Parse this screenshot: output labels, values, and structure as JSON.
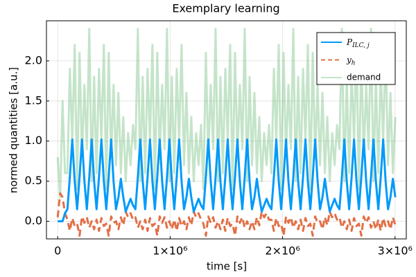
{
  "chart_data": {
    "type": "line",
    "title": "Exemplary learning",
    "xlabel": "time [s]",
    "ylabel": "normed quantities [a.u.]",
    "xlim": [
      -100000,
      3100000
    ],
    "ylim": [
      -0.22,
      2.5
    ],
    "xticks": [
      {
        "value": 0,
        "label": "0"
      },
      {
        "value": 1000000,
        "label": "1×10⁶"
      },
      {
        "value": 2000000,
        "label": "2×10⁶"
      },
      {
        "value": 3000000,
        "label": "3×10⁶"
      }
    ],
    "yticks": [
      {
        "value": 0,
        "label": "0.0"
      },
      {
        "value": 0.5,
        "label": "0.5"
      },
      {
        "value": 1,
        "label": "1.0"
      },
      {
        "value": 1.5,
        "label": "1.5"
      },
      {
        "value": 2,
        "label": "2.0"
      }
    ],
    "grid": true,
    "legend": "top-right",
    "x": [
      0,
      21600,
      43200,
      64800,
      86400,
      108000,
      129600,
      151200,
      172800,
      194400,
      216000,
      237600,
      259200,
      280800,
      302400,
      324000,
      345600,
      367200,
      388800,
      410400,
      432000,
      453600,
      475200,
      496800,
      518400,
      540000,
      561600,
      583200,
      604800,
      626400,
      648000,
      669600,
      691200,
      712800,
      734400,
      756000,
      777600,
      799200,
      820800,
      842400,
      864000,
      885600,
      907200,
      928800,
      950400,
      972000,
      993600,
      1015200,
      1036800,
      1058400,
      1080000,
      1101600,
      1123200,
      1144800,
      1166400,
      1188000,
      1209600,
      1231200,
      1252800,
      1274400,
      1296000,
      1317600,
      1339200,
      1360800,
      1382400,
      1404000,
      1425600,
      1447200,
      1468800,
      1490400,
      1512000,
      1533600,
      1555200,
      1576800,
      1598400,
      1620000,
      1641600,
      1663200,
      1684800,
      1706400,
      1728000,
      1749600,
      1771200,
      1792800,
      1814400,
      1836000,
      1857600,
      1879200,
      1900800,
      1922400,
      1944000,
      1965600,
      1987200,
      2008800,
      2030400,
      2052000,
      2073600,
      2095200,
      2116800,
      2138400,
      2160000,
      2181600,
      2203200,
      2224800,
      2246400,
      2268000,
      2289600,
      2311200,
      2332800,
      2354400,
      2376000,
      2397600,
      2419200,
      2440800,
      2462400,
      2484000,
      2505600,
      2527200,
      2548800,
      2570400,
      2592000,
      2613600,
      2635200,
      2656800,
      2678400,
      2700000,
      2721600,
      2743200,
      2764800,
      2786400,
      2808000,
      2829600,
      2851200,
      2872800,
      2894400,
      2916000,
      2937600,
      2959200,
      2980800,
      3002400
    ],
    "series": [
      {
        "name": "P_ILC, j",
        "color": "#009afa",
        "dash": false,
        "opacity": 1,
        "values": [
          0,
          0,
          0,
          0.1,
          0.15,
          0.55,
          1.02,
          0.5,
          0.15,
          0.55,
          1.02,
          0.5,
          0.15,
          0.55,
          1.02,
          0.5,
          0.15,
          0.55,
          1.02,
          0.5,
          0.15,
          0.55,
          1.02,
          0.5,
          0.15,
          0.3,
          0.53,
          0.3,
          0.12,
          0.2,
          0.28,
          0.2,
          0.15,
          0.55,
          1.02,
          0.5,
          0.15,
          0.55,
          1.02,
          0.5,
          0.15,
          0.55,
          1.02,
          0.5,
          0.15,
          0.55,
          1.02,
          0.5,
          0.15,
          0.55,
          1.02,
          0.5,
          0.15,
          0.3,
          0.53,
          0.3,
          0.12,
          0.2,
          0.28,
          0.2,
          0.15,
          0.55,
          1.02,
          0.5,
          0.15,
          0.55,
          1.02,
          0.5,
          0.15,
          0.55,
          1.02,
          0.5,
          0.15,
          0.55,
          1.02,
          0.5,
          0.15,
          0.55,
          1.02,
          0.5,
          0.15,
          0.3,
          0.53,
          0.3,
          0.12,
          0.2,
          0.28,
          0.2,
          0.15,
          0.55,
          1.02,
          0.5,
          0.15,
          0.55,
          1.02,
          0.5,
          0.15,
          0.55,
          1.02,
          0.5,
          0.15,
          0.55,
          1.02,
          0.5,
          0.15,
          0.55,
          1.02,
          0.5,
          0.15,
          0.3,
          0.53,
          0.3,
          0.12,
          0.2,
          0.28,
          0.2,
          0.15,
          0.55,
          1.02,
          0.5,
          0.15,
          0.55,
          1.02,
          0.5,
          0.15,
          0.55,
          1.02,
          0.5,
          0.15,
          0.55,
          1.02,
          0.5,
          0.15,
          0.55,
          1.02,
          0.5,
          0.15,
          0.3,
          0.53,
          0.3
        ]
      },
      {
        "name": "y_h",
        "color": "#e26f46",
        "dash": true,
        "opacity": 1,
        "values": [
          0.05,
          0.35,
          0.3,
          0.1,
          0.02,
          -0.12,
          0.04,
          -0.06,
          -0.03,
          -0.18,
          0.06,
          -0.02,
          0.05,
          -0.08,
          0,
          -0.1,
          0.02,
          -0.12,
          0.04,
          -0.06,
          -0.03,
          -0.18,
          0.06,
          -0.02,
          0,
          -0.1,
          0.05,
          -0.05,
          0.12,
          0.05,
          0.1,
          0.02,
          0.05,
          -0.08,
          0,
          -0.1,
          0.02,
          -0.12,
          0.04,
          -0.06,
          -0.03,
          -0.18,
          0.06,
          -0.02,
          0.05,
          -0.08,
          0,
          -0.1,
          0.02,
          -0.12,
          0.04,
          -0.06,
          0,
          -0.1,
          0.05,
          -0.05,
          0.12,
          0.05,
          0.1,
          0.02,
          -0.03,
          -0.18,
          0.06,
          -0.02,
          0.05,
          -0.08,
          0,
          -0.1,
          0.02,
          -0.12,
          0.04,
          -0.06,
          -0.03,
          -0.18,
          0.06,
          -0.02,
          0.05,
          -0.08,
          0,
          -0.1,
          0,
          -0.1,
          0.05,
          -0.05,
          0.12,
          0.05,
          0.1,
          0.02,
          0.02,
          -0.12,
          0.04,
          -0.06,
          -0.03,
          -0.18,
          0.06,
          -0.02,
          0.05,
          -0.08,
          0,
          -0.1,
          0.02,
          -0.12,
          0.04,
          -0.06,
          -0.03,
          -0.18,
          0.06,
          -0.02,
          0,
          -0.1,
          0.05,
          -0.05,
          0.12,
          0.05,
          0.1,
          0.02,
          0.05,
          -0.08,
          0,
          -0.1,
          0.02,
          -0.12,
          0.04,
          -0.06,
          -0.03,
          -0.18,
          0.06,
          -0.02,
          0.05,
          -0.08,
          0,
          -0.1,
          0.02,
          -0.12,
          0.04,
          -0.06,
          0,
          -0.1,
          0.05,
          -0.05
        ]
      },
      {
        "name": "demand",
        "color": "#3da44d",
        "dash": false,
        "opacity": 0.3,
        "values": [
          0.8,
          0.3,
          1.5,
          0.6,
          0.6,
          1.9,
          1,
          2.2,
          0.4,
          2.1,
          0.8,
          1.7,
          0.9,
          2.4,
          0.5,
          1.8,
          0.6,
          1.9,
          1,
          2.2,
          0.4,
          2.1,
          0.8,
          1.7,
          0.7,
          1.6,
          0.6,
          1.3,
          0.5,
          1.1,
          0.7,
          1.2,
          0.9,
          2.4,
          0.5,
          1.8,
          0.6,
          1.9,
          1,
          2.2,
          0.4,
          2.1,
          0.8,
          1.7,
          0.9,
          2.4,
          0.5,
          1.8,
          0.6,
          1.9,
          1,
          2.2,
          0.7,
          1.6,
          0.6,
          1.3,
          0.5,
          1.1,
          0.7,
          1.2,
          0.4,
          2.1,
          0.8,
          1.7,
          0.9,
          2.4,
          0.5,
          1.8,
          0.6,
          1.9,
          1,
          2.2,
          0.4,
          2.1,
          0.8,
          1.7,
          0.9,
          2.4,
          0.5,
          1.8,
          0.7,
          1.6,
          0.6,
          1.3,
          0.5,
          1.1,
          0.7,
          1.2,
          0.6,
          1.9,
          1,
          2.2,
          0.4,
          2.1,
          0.8,
          1.7,
          0.9,
          2.4,
          0.5,
          1.8,
          0.6,
          1.9,
          1,
          2.2,
          0.4,
          2.1,
          0.8,
          1.7,
          0.7,
          1.6,
          0.6,
          1.3,
          0.5,
          1.1,
          0.7,
          1.2,
          0.9,
          2.4,
          0.5,
          1.8,
          0.6,
          1.9,
          1,
          2.2,
          0.4,
          2.1,
          0.8,
          1.7,
          0.9,
          2.4,
          0.5,
          1.8,
          0.6,
          1.9,
          1,
          2.2,
          0.7,
          1.6,
          0.6,
          1.3
        ]
      }
    ]
  }
}
